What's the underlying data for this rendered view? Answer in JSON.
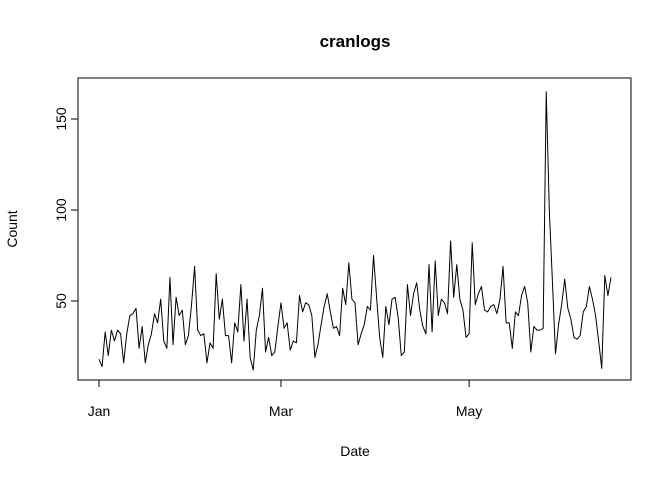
{
  "chart_data": {
    "type": "line",
    "title": "cranlogs",
    "xlabel": "Date",
    "ylabel": "Count",
    "x_ticks": [
      "Jan",
      "Mar",
      "May"
    ],
    "y_ticks": [
      50,
      100,
      150
    ],
    "x_start": "2015-01-01",
    "ylim": [
      12,
      165
    ],
    "grid": false,
    "series": [
      {
        "values": [
          18,
          14,
          33,
          20,
          34,
          28,
          34,
          32,
          16,
          32,
          42,
          43,
          46,
          24,
          36,
          16,
          26,
          32,
          43,
          38,
          51,
          28,
          24,
          63,
          26,
          52,
          42,
          45,
          26,
          31,
          48,
          69,
          34,
          31,
          32,
          16,
          27,
          24,
          65,
          40,
          51,
          31,
          31,
          16,
          38,
          33,
          59,
          28,
          51,
          19,
          12,
          34,
          42,
          57,
          22,
          30,
          20,
          22,
          36,
          49,
          35,
          38,
          23,
          28,
          27,
          53,
          44,
          49,
          48,
          42,
          19,
          26,
          37,
          47,
          54,
          44,
          35,
          36,
          31,
          57,
          48,
          71,
          51,
          49,
          26,
          32,
          37,
          47,
          45,
          75,
          52,
          30,
          19,
          47,
          37,
          51,
          52,
          41,
          20,
          22,
          59,
          42,
          54,
          60,
          45,
          36,
          32,
          70,
          33,
          72,
          42,
          51,
          49,
          43,
          83,
          52,
          70,
          51,
          45,
          30,
          32,
          82,
          48,
          54,
          58,
          45,
          44,
          47,
          48,
          43,
          51,
          69,
          38,
          38,
          24,
          44,
          42,
          53,
          58,
          49,
          22,
          36,
          34,
          34,
          35,
          165,
          100,
          61,
          21,
          37,
          48,
          62,
          46,
          40,
          30,
          29,
          31,
          44,
          47,
          58,
          51,
          42,
          28,
          13,
          64,
          53,
          63
        ]
      }
    ]
  }
}
